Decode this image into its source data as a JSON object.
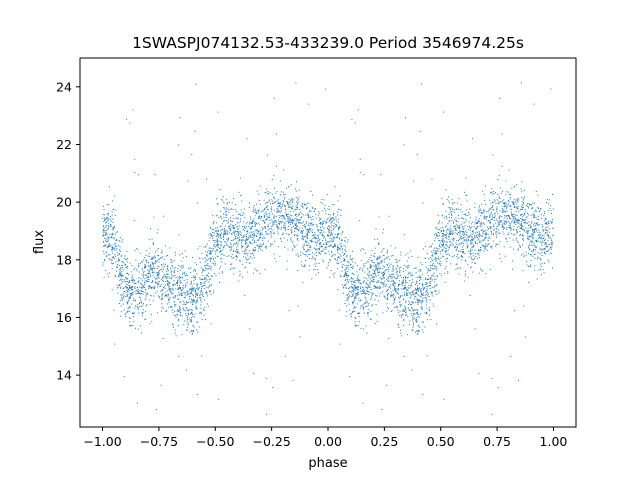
{
  "chart_data": {
    "type": "scatter",
    "title": "1SWASPJ074132.53-433239.0 Period 3546974.25s",
    "xlabel": "phase",
    "ylabel": "flux",
    "xlim": [
      -1.1,
      1.1
    ],
    "ylim": [
      12.2,
      25.0
    ],
    "xticks": [
      -1.0,
      -0.75,
      -0.5,
      -0.25,
      0.0,
      0.25,
      0.5,
      0.75,
      1.0
    ],
    "xtick_labels": [
      "−1.00",
      "−0.75",
      "−0.50",
      "−0.25",
      "0.00",
      "0.25",
      "0.50",
      "0.75",
      "1.00"
    ],
    "yticks": [
      14,
      16,
      18,
      20,
      22,
      24
    ],
    "ytick_labels": [
      "14",
      "16",
      "18",
      "20",
      "22",
      "24"
    ],
    "grid": false,
    "marker_color": "#1f77b4",
    "series": [
      {
        "phase_profile": [
          [
            0.0,
            19.0
          ],
          [
            0.05,
            18.6
          ],
          [
            0.08,
            17.3
          ],
          [
            0.12,
            16.9
          ],
          [
            0.17,
            17.0
          ],
          [
            0.22,
            17.6
          ],
          [
            0.25,
            17.4
          ],
          [
            0.3,
            16.9
          ],
          [
            0.35,
            16.9
          ],
          [
            0.4,
            16.6
          ],
          [
            0.45,
            17.2
          ],
          [
            0.5,
            18.6
          ],
          [
            0.55,
            19.0
          ],
          [
            0.6,
            18.7
          ],
          [
            0.65,
            18.8
          ],
          [
            0.7,
            19.1
          ],
          [
            0.75,
            19.5
          ],
          [
            0.8,
            19.6
          ],
          [
            0.85,
            19.3
          ],
          [
            0.9,
            19.0
          ],
          [
            0.95,
            18.7
          ],
          [
            1.0,
            19.0
          ]
        ],
        "scatter_spread": 0.6,
        "outlier_range": [
          12.6,
          24.4
        ]
      }
    ]
  }
}
